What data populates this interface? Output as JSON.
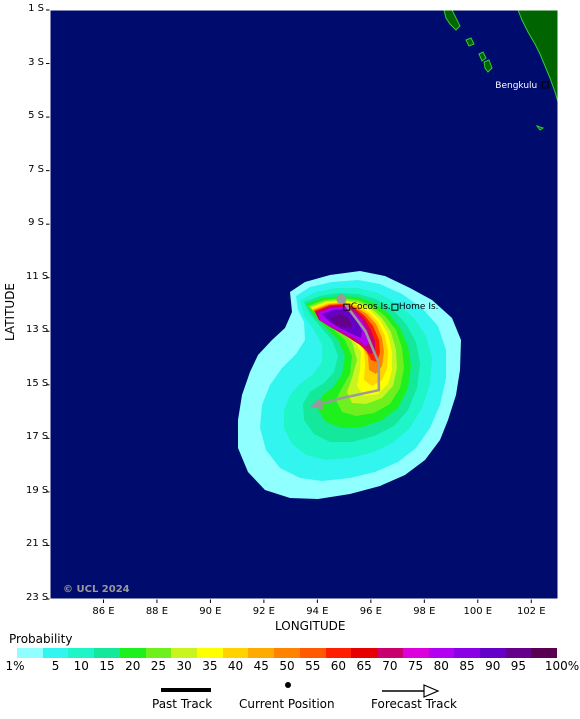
{
  "axes": {
    "lat_labels": [
      "1 S",
      "3 S",
      "5 S",
      "7 S",
      "9 S",
      "11 S",
      "13 S",
      "15 S",
      "17 S",
      "19 S",
      "21 S",
      "23 S"
    ],
    "lon_labels": [
      "86 E",
      "88 E",
      "90 E",
      "92 E",
      "94 E",
      "96 E",
      "98 E",
      "100 E",
      "102 E"
    ],
    "ylabel": "LATITUDE",
    "xlabel": "LONGITUDE"
  },
  "places": [
    {
      "name": "Bengkulu",
      "lon": 102.3,
      "lat": -3.8
    },
    {
      "name": "Cocos Is.",
      "lon": 95.1,
      "lat": -12.1
    },
    {
      "name": "Home Is.",
      "lon": 96.9,
      "lat": -12.1
    }
  ],
  "copyright": "© UCL 2024",
  "colors": {
    "ocean": "#000b6e",
    "land": "#006400",
    "coast": "#33cc33",
    "frame": "#ffffff"
  },
  "legend": {
    "title": "Probability",
    "steps": [
      {
        "label": "1%",
        "color": "#8fffff"
      },
      {
        "label": "5",
        "color": "#33f5f0"
      },
      {
        "label": "10",
        "color": "#1ef5c8"
      },
      {
        "label": "15",
        "color": "#14e89a"
      },
      {
        "label": "20",
        "color": "#1ef01e"
      },
      {
        "label": "25",
        "color": "#6ef01e"
      },
      {
        "label": "30",
        "color": "#c8f51e"
      },
      {
        "label": "35",
        "color": "#ffff00"
      },
      {
        "label": "40",
        "color": "#ffd200"
      },
      {
        "label": "45",
        "color": "#ffaa00"
      },
      {
        "label": "50",
        "color": "#ff8200"
      },
      {
        "label": "55",
        "color": "#ff5a00"
      },
      {
        "label": "60",
        "color": "#ff1e00"
      },
      {
        "label": "65",
        "color": "#e60000"
      },
      {
        "label": "70",
        "color": "#c8006e"
      },
      {
        "label": "75",
        "color": "#dc00dc"
      },
      {
        "label": "80",
        "color": "#b400f0"
      },
      {
        "label": "85",
        "color": "#8c00e6"
      },
      {
        "label": "90",
        "color": "#6400c8"
      },
      {
        "label": "95",
        "color": "#64008c"
      },
      {
        "label": "100%",
        "color": "#5a0050"
      }
    ]
  },
  "track_legend": {
    "past": "Past Track",
    "current": "Current Position",
    "forecast": "Forecast Track"
  },
  "storm": {
    "current_position": {
      "lon": 94.9,
      "lat": -11.8
    },
    "forecast_track": [
      {
        "lon": 94.9,
        "lat": -11.8
      },
      {
        "lon": 95.8,
        "lat": -13.0
      },
      {
        "lon": 96.3,
        "lat": -14.2
      },
      {
        "lon": 96.3,
        "lat": -15.2
      },
      {
        "lon": 94.9,
        "lat": -15.5
      },
      {
        "lon": 93.8,
        "lat": -15.8
      }
    ]
  }
}
